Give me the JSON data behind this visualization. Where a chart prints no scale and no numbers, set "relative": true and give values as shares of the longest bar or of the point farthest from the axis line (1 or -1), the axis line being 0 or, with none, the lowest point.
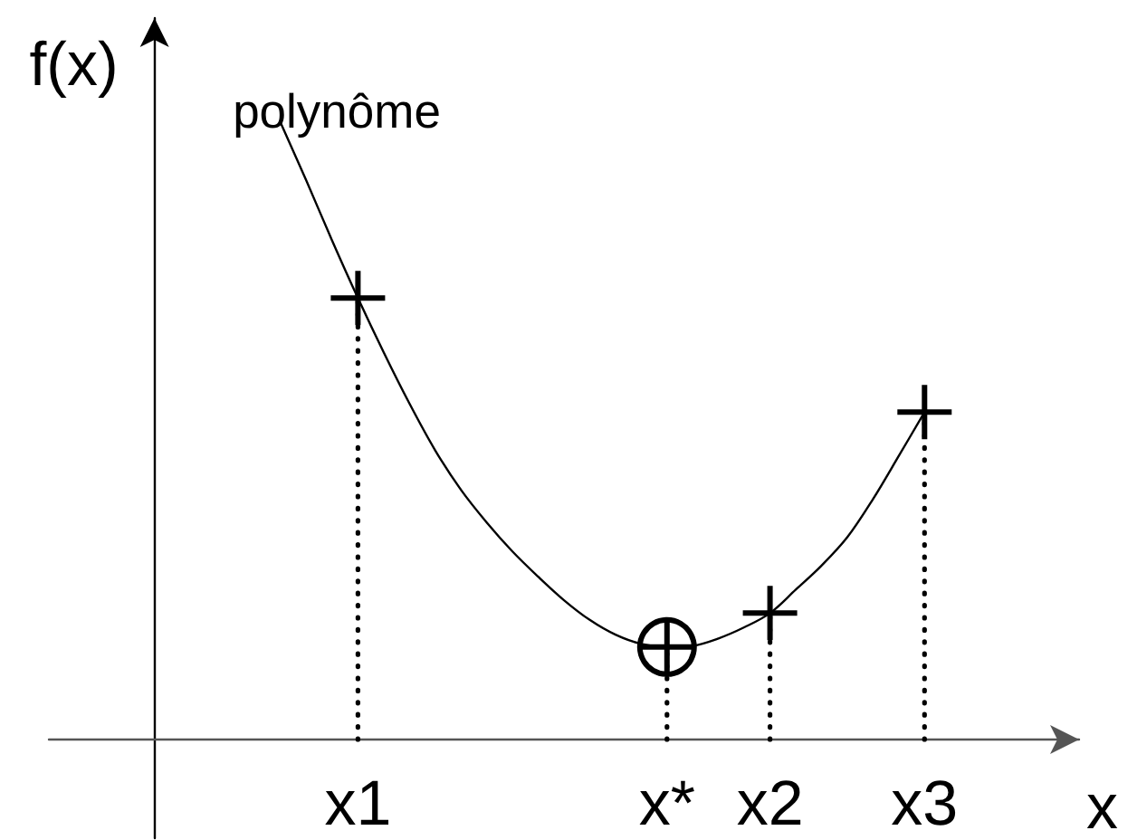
{
  "chart_data": {
    "type": "line",
    "xlabel": "x",
    "ylabel": "f(x)",
    "relative": true,
    "tick_labels": "x",
    "categories": [
      null,
      null,
      null,
      "x1",
      null,
      null,
      null,
      null,
      null,
      null,
      null,
      null,
      null,
      null,
      null,
      "x*",
      null,
      null,
      null,
      "x2",
      null,
      null,
      null,
      null,
      null,
      "x3"
    ],
    "series": [
      {
        "name": "polynôme",
        "color": "#000000",
        "marker": "none",
        "values": [
          1.0,
          0.906,
          0.809,
          0.716,
          0.628,
          0.545,
          0.469,
          0.405,
          0.352,
          0.305,
          0.264,
          0.226,
          0.194,
          0.17,
          0.155,
          0.15,
          0.152,
          0.164,
          0.182,
          0.205,
          0.243,
          0.282,
          0.328,
          0.39,
          0.46,
          0.531
        ]
      },
      {
        "type": "scatter",
        "color": "#000000",
        "marker": "circle",
        "values": [
          null,
          null,
          null,
          null,
          null,
          null,
          null,
          null,
          null,
          null,
          null,
          null,
          null,
          null,
          null,
          0.15,
          null,
          null,
          null,
          null,
          null,
          null,
          null,
          null,
          null,
          null
        ]
      },
      {
        "type": "lollipop",
        "color": "#000000",
        "marker": "cross",
        "line_style": "dotted",
        "values": [
          null,
          null,
          null,
          0.716,
          null,
          null,
          null,
          null,
          null,
          null,
          null,
          null,
          null,
          null,
          null,
          0.15,
          null,
          null,
          null,
          0.205,
          null,
          null,
          null,
          null,
          null,
          0.531
        ]
      }
    ]
  }
}
